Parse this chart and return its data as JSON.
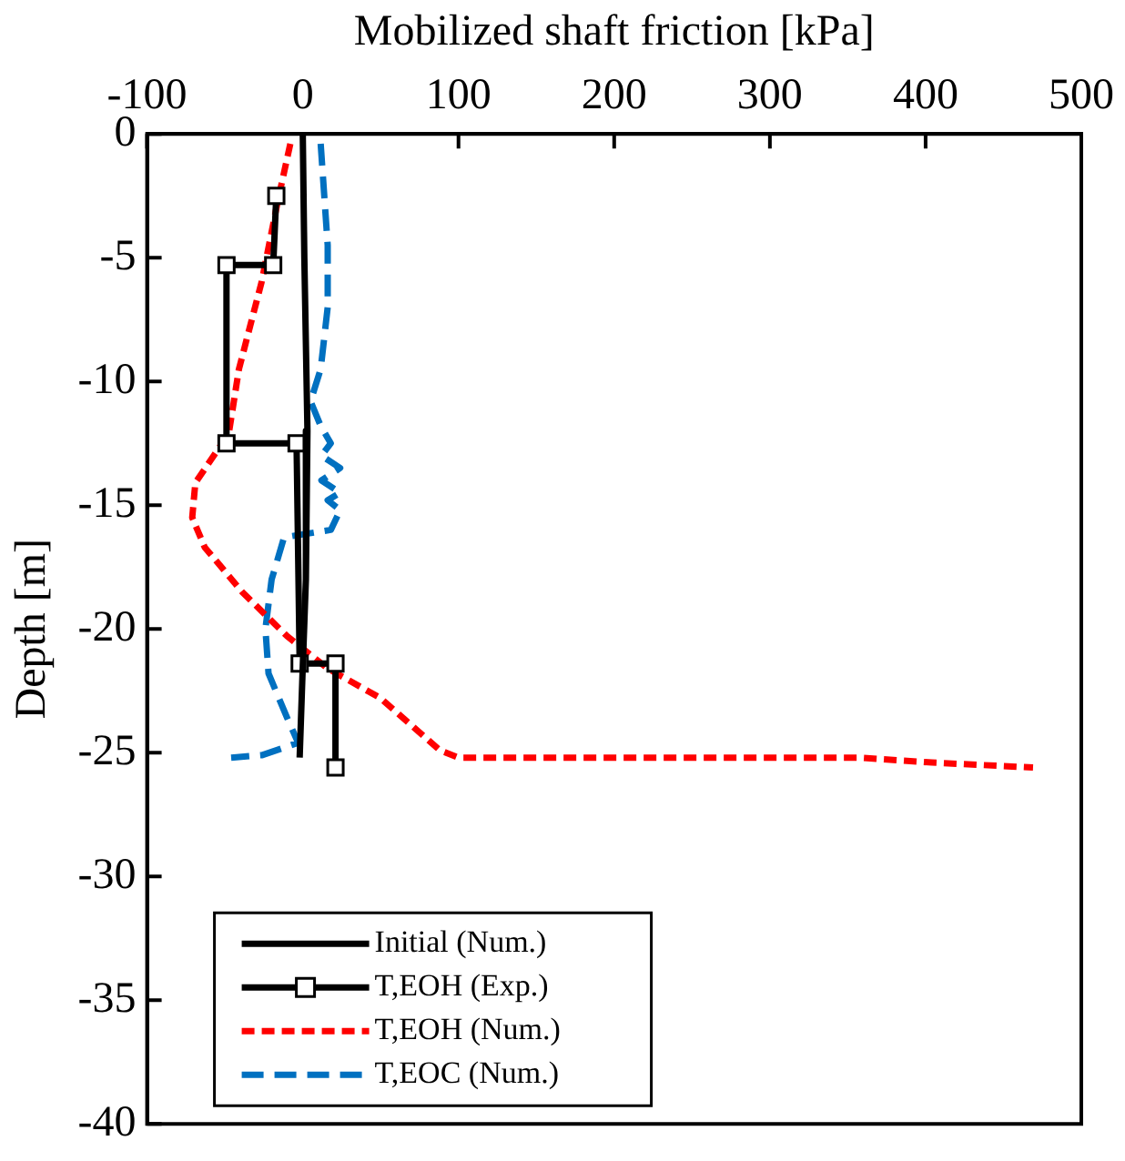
{
  "chart_data": {
    "type": "line",
    "xlabel": "Mobilized shaft friction [kPa]",
    "ylabel": "Depth [m]",
    "xlim": [
      -100,
      500
    ],
    "xticks": [
      -100,
      0,
      100,
      200,
      300,
      400,
      500
    ],
    "ylim": [
      -40,
      0
    ],
    "yticks": [
      0,
      -5,
      -10,
      -15,
      -20,
      -25,
      -30,
      -35,
      -40
    ],
    "grid": false,
    "legend": "bottom left",
    "series": [
      {
        "name": "Initial (Num.)",
        "color": "#000000",
        "marker": "none",
        "line_style": "solid",
        "x": [
          0,
          1,
          3,
          2,
          0,
          -2
        ],
        "values": [
          0,
          -5,
          -12,
          -18,
          -21.5,
          -25.2
        ]
      },
      {
        "name": "T,EOH (Exp.)",
        "color": "#000000",
        "marker": "square",
        "line_style": "solid",
        "x": [
          -17,
          -19,
          -49,
          -49,
          -4,
          -2,
          21,
          21
        ],
        "values": [
          -2.5,
          -5.3,
          -5.3,
          -12.5,
          -12.5,
          -21.4,
          -21.4,
          -25.6
        ]
      },
      {
        "name": "T,EOH (Num.)",
        "color": "#ff0000",
        "marker": "none",
        "line_style": "dashed",
        "x": [
          -8,
          -16,
          -26.5,
          -41,
          -47.5,
          -69,
          -71,
          -63,
          -39,
          -10,
          16,
          50,
          88,
          92,
          100,
          358,
          404,
          469
        ],
        "values": [
          -0.4,
          -2.7,
          -6,
          -9.5,
          -12.1,
          -14.1,
          -15.5,
          -16.7,
          -18.5,
          -20.3,
          -21.6,
          -22.8,
          -24.9,
          -25,
          -25.2,
          -25.2,
          -25.4,
          -25.6
        ]
      },
      {
        "name": "T,EOC (Num.)",
        "color": "#0070c0",
        "marker": "none",
        "line_style": "dashed",
        "x": [
          11.5,
          16,
          16,
          11.5,
          5,
          11.5,
          18,
          12,
          24,
          12,
          24,
          16,
          24,
          18,
          -12,
          -20,
          -24,
          -22,
          -10,
          -3,
          -26,
          -46
        ],
        "values": [
          -0.4,
          -4.5,
          -7,
          -9.5,
          -10.8,
          -11.8,
          -12.5,
          -13,
          -13.5,
          -14,
          -14.5,
          -14.8,
          -15.2,
          -16,
          -16.3,
          -18,
          -20,
          -21.8,
          -23.6,
          -24.6,
          -25.1,
          -25.2
        ]
      }
    ]
  }
}
